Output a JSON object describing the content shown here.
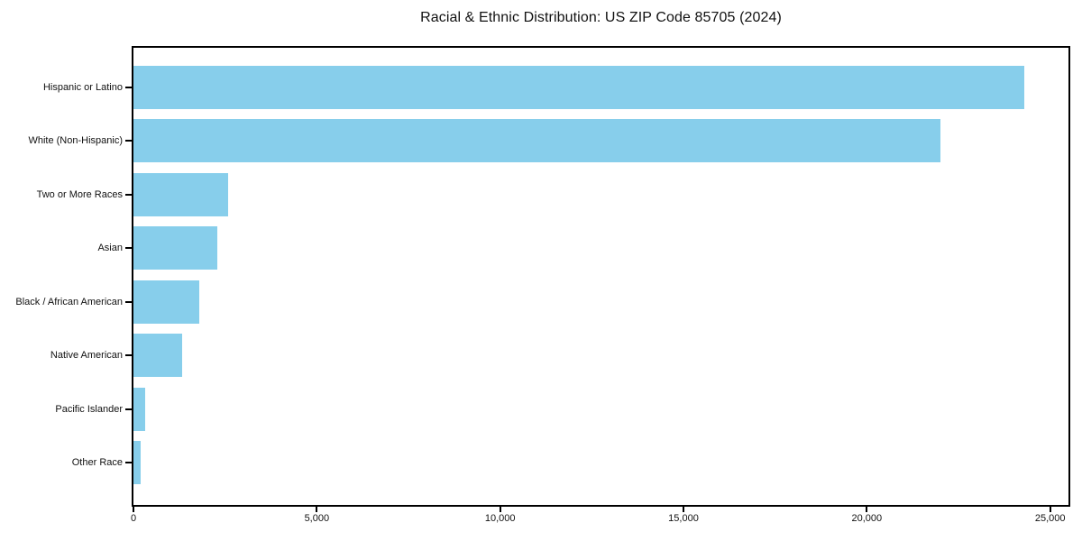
{
  "chart_data": {
    "type": "bar",
    "orientation": "horizontal",
    "title": "Racial & Ethnic Distribution: US ZIP Code 85705 (2024)",
    "categories": [
      "Hispanic or Latino",
      "White (Non-Hispanic)",
      "Two or More Races",
      "Asian",
      "Black / African American",
      "Native American",
      "Pacific Islander",
      "Other Race"
    ],
    "values": [
      24300,
      22000,
      2580,
      2290,
      1790,
      1330,
      320,
      200
    ],
    "xlabel": "",
    "ylabel": "",
    "xlim": [
      0,
      25500
    ],
    "x_ticks": [
      0,
      5000,
      10000,
      15000,
      20000,
      25000
    ],
    "x_tick_labels": [
      "0",
      "5,000",
      "10,000",
      "15,000",
      "20,000",
      "25,000"
    ],
    "bar_color": "#87CEEB",
    "axis_color": "#000000",
    "text_color": "#111111",
    "background_color": "#ffffff",
    "grid": false,
    "legend": null
  }
}
